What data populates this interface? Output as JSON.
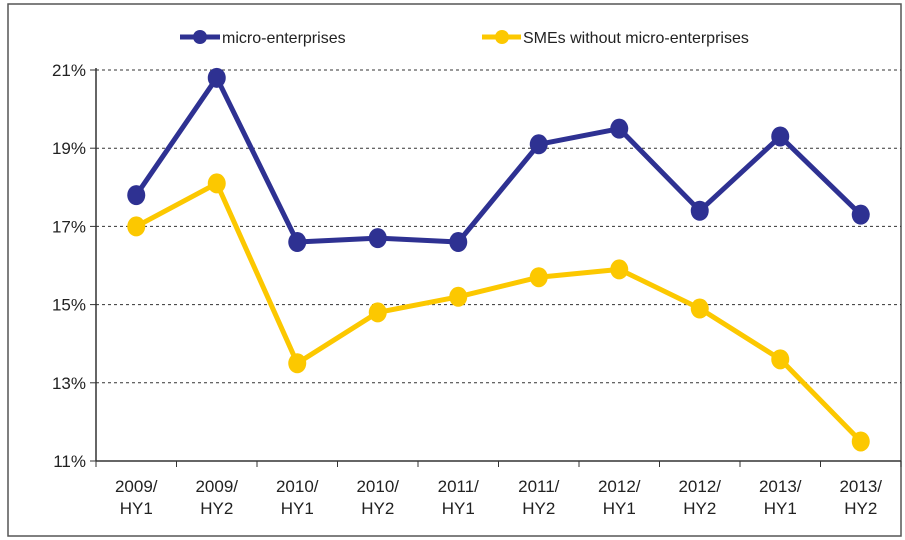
{
  "chart_data": {
    "type": "line",
    "title": "",
    "xlabel": "",
    "ylabel": "",
    "categories": [
      [
        "2009/",
        "HY1"
      ],
      [
        "2009/",
        "HY2"
      ],
      [
        "2010/",
        "HY1"
      ],
      [
        "2010/",
        "HY2"
      ],
      [
        "2011/",
        "HY1"
      ],
      [
        "2011/",
        "HY2"
      ],
      [
        "2012/",
        "HY1"
      ],
      [
        "2012/",
        "HY2"
      ],
      [
        "2013/",
        "HY1"
      ],
      [
        "2013/",
        "HY2"
      ]
    ],
    "series": [
      {
        "name": "micro-enterprises",
        "color": "#2e3192",
        "values": [
          17.8,
          20.8,
          16.6,
          16.7,
          16.6,
          19.1,
          19.5,
          17.4,
          19.3,
          17.3
        ]
      },
      {
        "name": "SMEs without micro-enterprises",
        "color": "#fcc800",
        "values": [
          17.0,
          18.1,
          13.5,
          14.8,
          15.2,
          15.7,
          15.9,
          14.9,
          13.6,
          11.5
        ]
      }
    ],
    "ylim": [
      11,
      21
    ],
    "yticks": [
      11,
      13,
      15,
      17,
      19,
      21
    ],
    "ytick_labels": [
      "11%",
      "13%",
      "15%",
      "17%",
      "19%",
      "21%"
    ],
    "grid": true,
    "grid_style": "dotted",
    "legend_position": "top"
  }
}
